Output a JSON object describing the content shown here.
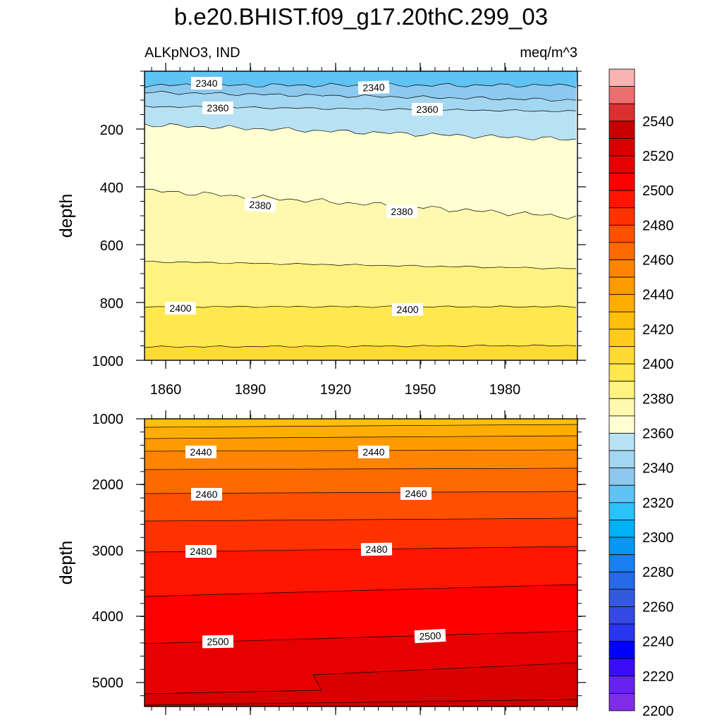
{
  "title": "b.e20.BHIST.f09_g17.20thC.299_03",
  "left_label": "ALKpNO3, IND",
  "right_label": "meq/m^3",
  "chart_data": [
    {
      "type": "contour",
      "panel": "upper",
      "ylabel": "depth",
      "ylim": [
        1000,
        0
      ],
      "xlim": [
        1850,
        2015
      ],
      "y_ticks": [
        "200",
        "400",
        "600",
        "800",
        "1000"
      ],
      "x_ticks": [
        "1860",
        "1890",
        "1920",
        "1950",
        "1980"
      ],
      "contour_labels": [
        "2340",
        "2340",
        "2360",
        "2360",
        "2380",
        "2380",
        "2400",
        "2400"
      ]
    },
    {
      "type": "contour",
      "panel": "lower",
      "ylabel": "depth",
      "ylim": [
        1000,
        5375
      ],
      "xlim": [
        1850,
        2015
      ],
      "y_ticks": [
        "1000",
        "2000",
        "3000",
        "4000",
        "5000"
      ],
      "contour_labels": [
        "2440",
        "2440",
        "2460",
        "2460",
        "2480",
        "2480",
        "2500",
        "2500"
      ]
    }
  ],
  "colorbar": {
    "labels": [
      "2540",
      "2520",
      "2500",
      "2480",
      "2460",
      "2440",
      "2420",
      "2400",
      "2380",
      "2360",
      "2340",
      "2320",
      "2300",
      "2280",
      "2260",
      "2240",
      "2220",
      "2200"
    ],
    "colors_top_to_bottom": [
      "#f9b3b3",
      "#ec6f6f",
      "#dc3030",
      "#c80000",
      "#d80000",
      "#e60000",
      "#ff0000",
      "#ff1500",
      "#ff3200",
      "#ff5000",
      "#ff6a00",
      "#ff8500",
      "#ff9a00",
      "#ffae00",
      "#ffbf0a",
      "#ffcc1e",
      "#ffda34",
      "#ffe74e",
      "#fff27f",
      "#fff9b0",
      "#ffffd2",
      "#b8e2f3",
      "#a3d6f0",
      "#8dc9ee",
      "#5fc3f4",
      "#2bc2f7",
      "#00b1f6",
      "#0797f3",
      "#1a7ff0",
      "#2769e6",
      "#3359dd",
      "#3549e2",
      "#2a35ee",
      "#0000ff",
      "#3a0ef5",
      "#6622ee",
      "#7f2de6"
    ]
  }
}
